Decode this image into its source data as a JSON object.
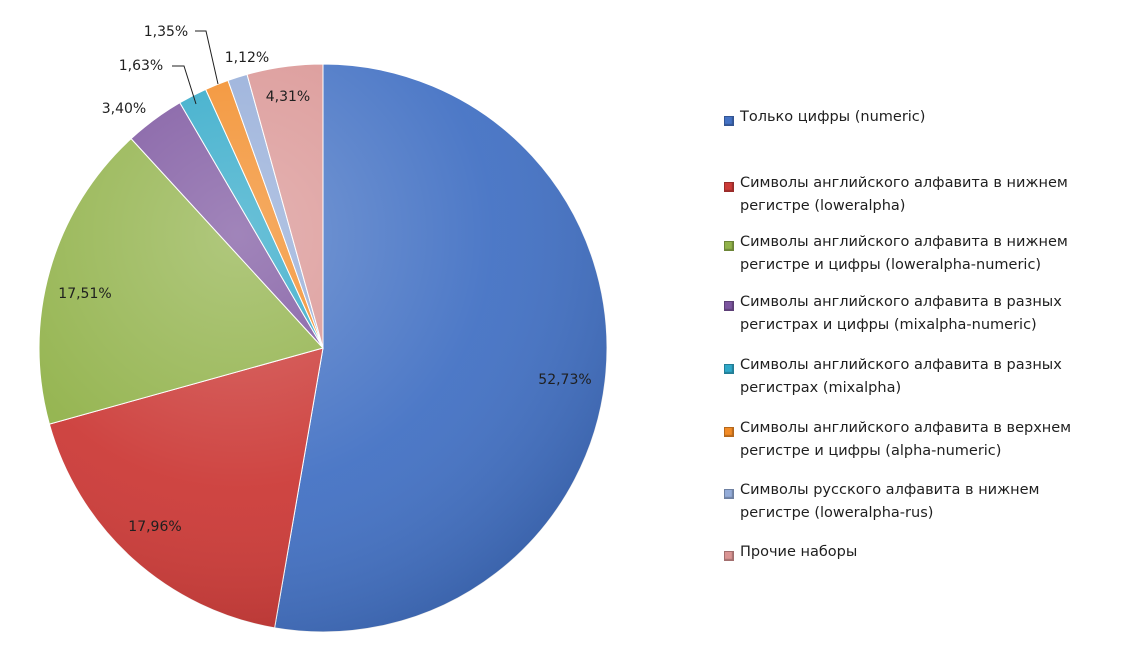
{
  "chart_data": {
    "type": "pie",
    "title": "",
    "start_angle_deg": 0,
    "direction": "clockwise",
    "legend_position": "right",
    "slices": [
      {
        "label": "Только цифры (numeric)",
        "value": 52.73,
        "value_label": "52,73%",
        "color": "#4472c4"
      },
      {
        "label": "Символы английского алфавита в нижнем регистре (loweralpha)",
        "value": 17.96,
        "value_label": "17,96%",
        "color": "#cc3b38"
      },
      {
        "label": "Символы английского алфавита в нижнем регистре и цифры (loweralpha-numeric)",
        "value": 17.51,
        "value_label": "17,51%",
        "color": "#91b24a"
      },
      {
        "label": "Символы английского алфавита в разных регистрах и цифры (mixalpha-numeric)",
        "value": 3.4,
        "value_label": "3,40%",
        "color": "#7c559f"
      },
      {
        "label": "Символы английского алфавита в разных регистрах (mixalpha)",
        "value": 1.63,
        "value_label": "1,63%",
        "color": "#2fa8c8"
      },
      {
        "label": "Символы английского алфавита в верхнем регистре и цифры (alpha-numeric)",
        "value": 1.35,
        "value_label": "1,35%",
        "color": "#f28b26"
      },
      {
        "label": "Символы русского алфавита в нижнем регистре (loweralpha-rus)",
        "value": 1.12,
        "value_label": "1,12%",
        "color": "#94acd8"
      },
      {
        "label": "Прочие наборы",
        "value": 4.31,
        "value_label": "4,31%",
        "color": "#da9594"
      }
    ]
  },
  "legend": {
    "items": [
      {
        "text": "Только цифры (numeric)",
        "color": "#4472c4"
      },
      {
        "text": "Символы английского алфавита  в нижнем\nрегистре (loweralpha)",
        "color": "#cc3b38"
      },
      {
        "text": "Символы английского алфавита  в нижнем\nрегистре и цифры  (loweralpha-numeric)",
        "color": "#91b24a"
      },
      {
        "text": "Символы английского алфавита  в разных\nрегистрах и цифры (mixalpha-numeric)",
        "color": "#7c559f"
      },
      {
        "text": "Символы английского алфавита  в разных\nрегистрах (mixalpha)",
        "color": "#2fa8c8"
      },
      {
        "text": "Символы английского алфавита  в верхнем\nрегистре и цифры  (alpha-numeric)",
        "color": "#f28b26"
      },
      {
        "text": "Символы русского алфавита  в нижнем\nрегистре (loweralpha-rus)",
        "color": "#94acd8"
      },
      {
        "text": "Прочие наборы",
        "color": "#da9594"
      }
    ]
  }
}
